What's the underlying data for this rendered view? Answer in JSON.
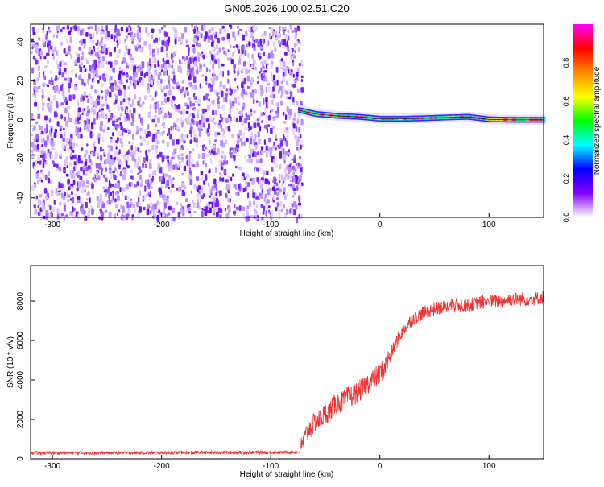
{
  "title": "GN05.2026.100.02.51.C20",
  "chart_data": [
    {
      "type": "heatmap",
      "xlabel": "Height of straight line (km)",
      "ylabel": "Frequency (Hz)",
      "xlim": [
        -320,
        150
      ],
      "ylim": [
        -50,
        49
      ],
      "xticks": [
        -300,
        -200,
        -100,
        0,
        100
      ],
      "yticks": [
        -40,
        -20,
        0,
        20,
        40
      ],
      "noise_region_x": [
        -320,
        -72
      ],
      "ridge": {
        "x": [
          -75,
          -60,
          -40,
          -20,
          0,
          20,
          40,
          60,
          80,
          100,
          120,
          150
        ],
        "y": [
          5,
          3,
          2,
          1.5,
          0.5,
          0.5,
          0.8,
          1.2,
          1.5,
          0.2,
          0,
          0
        ]
      },
      "colorbar": {
        "label": "Normalized spectral amplitude",
        "ticks": [
          0.0,
          0.2,
          0.4,
          0.6,
          0.8
        ],
        "range": [
          0,
          1
        ],
        "colors": [
          "#ffffff",
          "#8800ff",
          "#0000ff",
          "#00ffff",
          "#00ff00",
          "#ffff00",
          "#ff8800",
          "#ff0000",
          "#ff00ff"
        ]
      }
    },
    {
      "type": "line",
      "xlabel": "Height of straight line (km)",
      "ylabel": "SNR (10 * v/v)",
      "xlim": [
        -320,
        150
      ],
      "ylim": [
        0,
        9800
      ],
      "xticks": [
        -300,
        -200,
        -100,
        0,
        100
      ],
      "yticks": [
        0,
        2000,
        4000,
        6000,
        8000
      ],
      "color": "#ee3333",
      "series": [
        {
          "name": "SNR",
          "x": [
            -320,
            -250,
            -200,
            -150,
            -100,
            -80,
            -74,
            -70,
            -65,
            -60,
            -55,
            -50,
            -45,
            -40,
            -35,
            -30,
            -25,
            -20,
            -15,
            -10,
            -5,
            0,
            5,
            10,
            15,
            20,
            25,
            30,
            40,
            50,
            60,
            70,
            80,
            90,
            100,
            110,
            120,
            130,
            140,
            150
          ],
          "y": [
            300,
            300,
            310,
            320,
            330,
            340,
            350,
            900,
            1500,
            1800,
            2000,
            2300,
            2500,
            2800,
            2900,
            3100,
            3200,
            3400,
            3600,
            3900,
            4100,
            4300,
            4700,
            5300,
            5900,
            6400,
            6800,
            7100,
            7400,
            7600,
            7700,
            7800,
            7800,
            7900,
            8000,
            8000,
            8100,
            8100,
            8100,
            8200
          ]
        }
      ]
    }
  ]
}
